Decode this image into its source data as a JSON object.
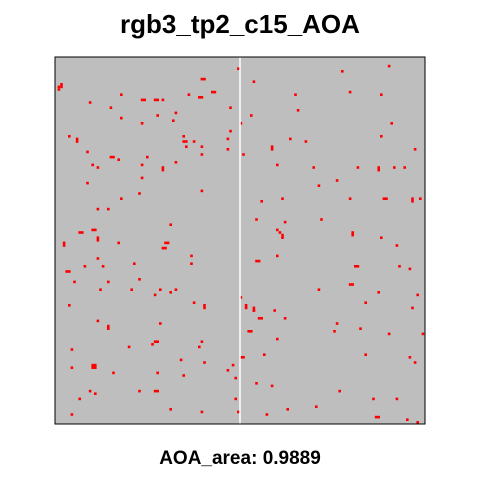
{
  "chart_data": {
    "type": "heatmap",
    "title": "rgb3_tp2_c15_AOA",
    "xlabel": "",
    "ylabel": "",
    "grid": false,
    "colors": {
      "background": "#bebebe",
      "outside_aoa": "#ff0000",
      "seam": "#ffffff",
      "frame": "#000000"
    },
    "caption": {
      "label": "AOA_area:",
      "value": "0.9889"
    },
    "outside_aoa_fraction": 0.0111
  }
}
